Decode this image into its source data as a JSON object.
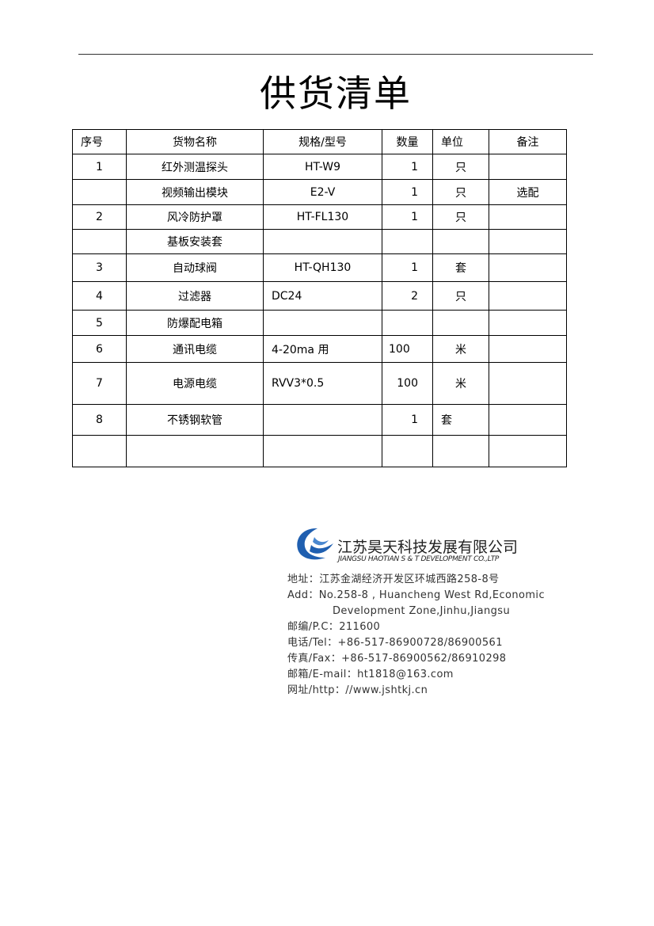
{
  "title": "供货清单",
  "table": {
    "headers": [
      "序号",
      "货物名称",
      "规格/型号",
      "数量",
      "单位",
      "备注"
    ],
    "rows": [
      [
        "1",
        "红外测温探头",
        "HT-W9",
        "1",
        "只",
        ""
      ],
      [
        "",
        "视频输出模块",
        "E2-V",
        "1",
        "只",
        "选配"
      ],
      [
        "2",
        "风冷防护罩",
        "HT-FL130",
        "1",
        "只",
        ""
      ],
      [
        "",
        "基板安装套",
        "",
        "",
        "",
        ""
      ],
      [
        "3",
        "自动球阀",
        "HT-QH130",
        "1",
        "套",
        ""
      ],
      [
        "4",
        "过滤器",
        "DC24",
        "2",
        "只",
        ""
      ],
      [
        "5",
        "防爆配电箱",
        "",
        "",
        "",
        ""
      ],
      [
        "6",
        "通讯电缆",
        "4-20ma 用",
        "100",
        "米",
        ""
      ],
      [
        "7",
        "电源电缆",
        "RVV3*0.5",
        "100",
        "米",
        ""
      ],
      [
        "8",
        "不锈钢软管",
        "",
        "1",
        "套",
        ""
      ],
      [
        "",
        "",
        "",
        "",
        "",
        ""
      ]
    ]
  },
  "footer": {
    "company_cn": "江苏昊天科技发展有限公司",
    "company_en": "JIANGSU HAOTIAN S & T DEVELOPMENT CO.,LTP",
    "logo_color": "#1f5fb0",
    "lines": [
      "地址：江苏金湖经济开发区环城西路258-8号",
      "Add：No.258-8 , Huancheng West Rd,Economic",
      "Development Zone,Jinhu,Jiangsu",
      "邮编/P.C：211600",
      "电话/Tel：+86-517-86900728/86900561",
      "传真/Fax：+86-517-86900562/86910298",
      "邮箱/E-mail：ht1818@163.com",
      "网址/http：//www.jshtkj.cn"
    ]
  }
}
